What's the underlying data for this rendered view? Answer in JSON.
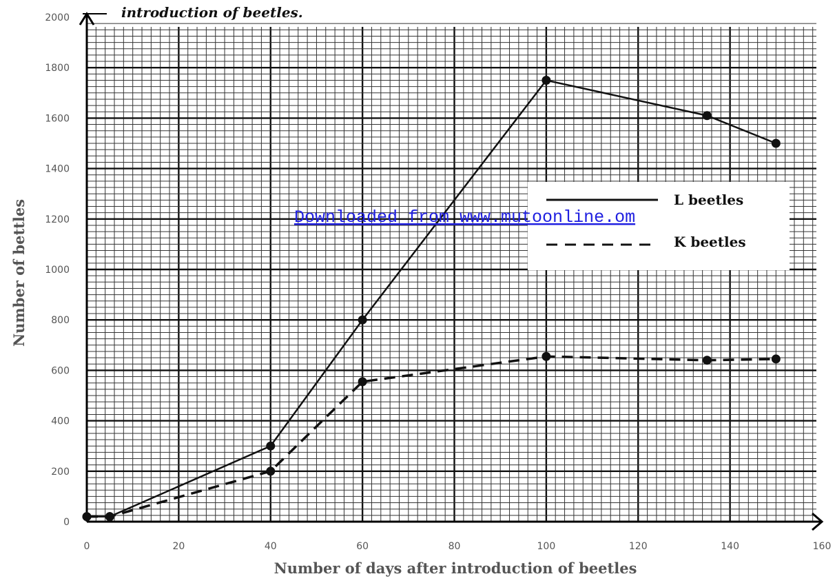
{
  "chart_data": {
    "type": "line",
    "title": "introduction of beetles.",
    "xlabel": "Number of days after introduction of beetles",
    "ylabel": "Number of bettles",
    "xlim": [
      0,
      160
    ],
    "ylim": [
      0,
      2000
    ],
    "x_ticks": [
      "0",
      "20",
      "40",
      "60",
      "80",
      "100",
      "120",
      "140",
      "160"
    ],
    "y_ticks": [
      "0",
      "200",
      "400",
      "600",
      "800",
      "1000",
      "1200",
      "1400",
      "1600",
      "1800",
      "2000"
    ],
    "grid": true,
    "legend_position": "right",
    "series": [
      {
        "name": "L beetles",
        "style": "solid",
        "color": "#111111",
        "points": [
          [
            0,
            20
          ],
          [
            5,
            20
          ],
          [
            40,
            300
          ],
          [
            60,
            800
          ],
          [
            100,
            1750
          ],
          [
            135,
            1610
          ],
          [
            150,
            1500
          ]
        ]
      },
      {
        "name": "K beetles",
        "style": "dashed",
        "color": "#111111",
        "points": [
          [
            0,
            20
          ],
          [
            5,
            20
          ],
          [
            40,
            200
          ],
          [
            60,
            555
          ],
          [
            100,
            655
          ],
          [
            135,
            640
          ],
          [
            150,
            645
          ]
        ]
      }
    ]
  },
  "watermark": "Downloaded from www.mutoonline.om"
}
